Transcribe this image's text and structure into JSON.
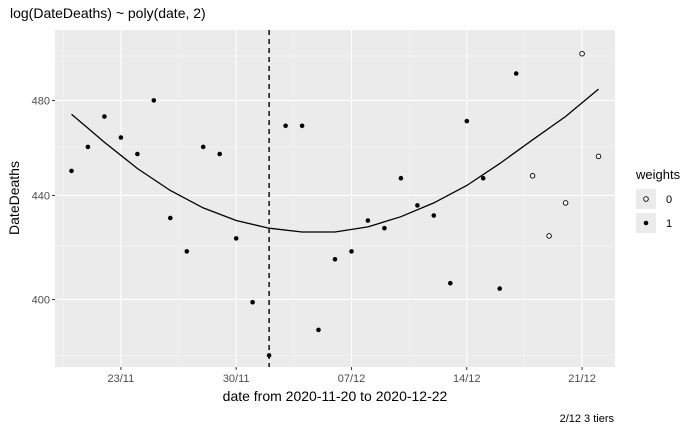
{
  "chart_data": {
    "type": "scatter",
    "title": "log(DateDeaths) ~ poly(date, 2)",
    "xlabel": "date from 2020-11-20 to 2020-12-22",
    "ylabel": "DateDeaths",
    "caption": "2/12 3 tiers",
    "x_axis_kind": "date",
    "y_scale": "log",
    "xlim": [
      "2020-11-19",
      "2020-12-23"
    ],
    "ylim": [
      376,
      512
    ],
    "x_ticks": [
      {
        "date": "2020-11-23",
        "label": "23/11"
      },
      {
        "date": "2020-11-30",
        "label": "30/11"
      },
      {
        "date": "2020-12-07",
        "label": "07/12"
      },
      {
        "date": "2020-12-14",
        "label": "14/12"
      },
      {
        "date": "2020-12-21",
        "label": "21/12"
      }
    ],
    "y_ticks": [
      {
        "value": 400,
        "label": "400"
      },
      {
        "value": 440,
        "label": "440"
      },
      {
        "value": 480,
        "label": "480"
      }
    ],
    "grid": true,
    "vline": {
      "date": "2020-12-02",
      "style": "dashed"
    },
    "legend": {
      "title": "weights",
      "placement": "right",
      "entries": [
        {
          "label": "0",
          "shape": "open-circle"
        },
        {
          "label": "1",
          "shape": "filled-circle"
        }
      ]
    },
    "points": [
      {
        "date": "2020-11-20",
        "value": 450,
        "weight": 1
      },
      {
        "date": "2020-11-21",
        "value": 460,
        "weight": 1
      },
      {
        "date": "2020-11-22",
        "value": 473,
        "weight": 1
      },
      {
        "date": "2020-11-23",
        "value": 464,
        "weight": 1
      },
      {
        "date": "2020-11-24",
        "value": 457,
        "weight": 1
      },
      {
        "date": "2020-11-25",
        "value": 480,
        "weight": 1
      },
      {
        "date": "2020-11-26",
        "value": 431,
        "weight": 1
      },
      {
        "date": "2020-11-27",
        "value": 418,
        "weight": 1
      },
      {
        "date": "2020-11-28",
        "value": 460,
        "weight": 1
      },
      {
        "date": "2020-11-29",
        "value": 457,
        "weight": 1
      },
      {
        "date": "2020-11-30",
        "value": 423,
        "weight": 1
      },
      {
        "date": "2020-12-01",
        "value": 399,
        "weight": 1
      },
      {
        "date": "2020-12-02",
        "value": 380,
        "weight": 1
      },
      {
        "date": "2020-12-03",
        "value": 469,
        "weight": 1
      },
      {
        "date": "2020-12-04",
        "value": 469,
        "weight": 1
      },
      {
        "date": "2020-12-05",
        "value": 389,
        "weight": 1
      },
      {
        "date": "2020-12-06",
        "value": 415,
        "weight": 1
      },
      {
        "date": "2020-12-07",
        "value": 418,
        "weight": 1
      },
      {
        "date": "2020-12-08",
        "value": 430,
        "weight": 1
      },
      {
        "date": "2020-12-09",
        "value": 427,
        "weight": 1
      },
      {
        "date": "2020-12-10",
        "value": 447,
        "weight": 1
      },
      {
        "date": "2020-12-11",
        "value": 436,
        "weight": 1
      },
      {
        "date": "2020-12-12",
        "value": 432,
        "weight": 1
      },
      {
        "date": "2020-12-13",
        "value": 406,
        "weight": 1
      },
      {
        "date": "2020-12-14",
        "value": 471,
        "weight": 1
      },
      {
        "date": "2020-12-15",
        "value": 447,
        "weight": 1
      },
      {
        "date": "2020-12-16",
        "value": 404,
        "weight": 1
      },
      {
        "date": "2020-12-17",
        "value": 492,
        "weight": 1
      },
      {
        "date": "2020-12-18",
        "value": 448,
        "weight": 0
      },
      {
        "date": "2020-12-19",
        "value": 424,
        "weight": 0
      },
      {
        "date": "2020-12-20",
        "value": 437,
        "weight": 0
      },
      {
        "date": "2020-12-21",
        "value": 501,
        "weight": 0
      },
      {
        "date": "2020-12-22",
        "value": 456,
        "weight": 0
      }
    ],
    "fit": {
      "label": "",
      "points": [
        {
          "date": "2020-11-20",
          "value": 474
        },
        {
          "date": "2020-11-22",
          "value": 462
        },
        {
          "date": "2020-11-24",
          "value": 451
        },
        {
          "date": "2020-11-26",
          "value": 442
        },
        {
          "date": "2020-11-28",
          "value": 435
        },
        {
          "date": "2020-11-30",
          "value": 430
        },
        {
          "date": "2020-12-02",
          "value": 427
        },
        {
          "date": "2020-12-04",
          "value": 425.5
        },
        {
          "date": "2020-12-06",
          "value": 425.5
        },
        {
          "date": "2020-12-08",
          "value": 427.5
        },
        {
          "date": "2020-12-10",
          "value": 431.5
        },
        {
          "date": "2020-12-12",
          "value": 437
        },
        {
          "date": "2020-12-14",
          "value": 444
        },
        {
          "date": "2020-12-16",
          "value": 453
        },
        {
          "date": "2020-12-18",
          "value": 463
        },
        {
          "date": "2020-12-20",
          "value": 473
        },
        {
          "date": "2020-12-22",
          "value": 485
        }
      ]
    },
    "colors": {
      "panel": "#ebebeb",
      "grid_major": "#ffffff",
      "grid_minor": "#f5f5f5",
      "ink": "#000000",
      "tick_text": "#4d4d4d",
      "tick_mark": "#333333"
    }
  }
}
